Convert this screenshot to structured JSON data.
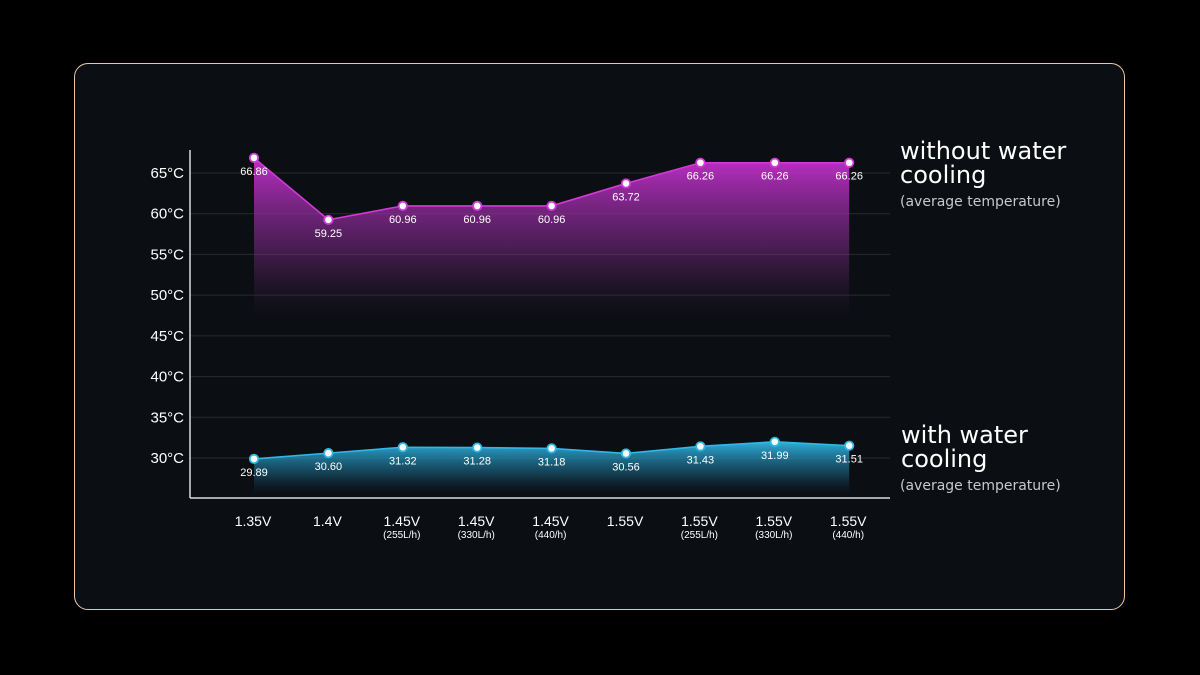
{
  "colors": {
    "background": "#000000",
    "card": "#0b0e12",
    "card_border": "#e9c7a9",
    "without_series": "#d23ad8",
    "with_series": "#2fb8e6"
  },
  "legend": {
    "without": {
      "title": "without water cooling",
      "subtitle": "(average temperature)"
    },
    "with": {
      "title": "with water cooling",
      "subtitle": "(average temperature)"
    }
  },
  "chart_data": {
    "type": "area",
    "categories": [
      {
        "label": "1.35V",
        "sub": ""
      },
      {
        "label": "1.4V",
        "sub": ""
      },
      {
        "label": "1.45V",
        "sub": "(255L/h)"
      },
      {
        "label": "1.45V",
        "sub": "(330L/h)"
      },
      {
        "label": "1.45V",
        "sub": "(440/h)"
      },
      {
        "label": "1.55V",
        "sub": ""
      },
      {
        "label": "1.55V",
        "sub": "(255L/h)"
      },
      {
        "label": "1.55V",
        "sub": "(330L/h)"
      },
      {
        "label": "1.55V",
        "sub": "(440/h)"
      }
    ],
    "y_ticks": [
      "30°C",
      "35°C",
      "40°C",
      "45°C",
      "50°C",
      "55°C",
      "60°C",
      "65°C"
    ],
    "y_tick_values": [
      30,
      35,
      40,
      45,
      50,
      55,
      60,
      65
    ],
    "ylim": [
      25,
      68
    ],
    "grid": true,
    "series": [
      {
        "name": "without water cooling",
        "color": "#d23ad8",
        "values": [
          66.86,
          59.25,
          60.96,
          60.96,
          60.96,
          63.72,
          66.26,
          66.26,
          66.26
        ],
        "labels": [
          "66.86",
          "59.25",
          "60.96",
          "60.96",
          "60.96",
          "63.72",
          "66.26",
          "66.26",
          "66.26"
        ]
      },
      {
        "name": "with water cooling",
        "color": "#2fb8e6",
        "values": [
          29.89,
          30.6,
          31.32,
          31.28,
          31.18,
          30.56,
          31.43,
          31.99,
          31.51
        ],
        "labels": [
          "29.89",
          "30.60",
          "31.32",
          "31.28",
          "31.18",
          "30.56",
          "31.43",
          "31.99",
          "31.51"
        ]
      }
    ]
  }
}
